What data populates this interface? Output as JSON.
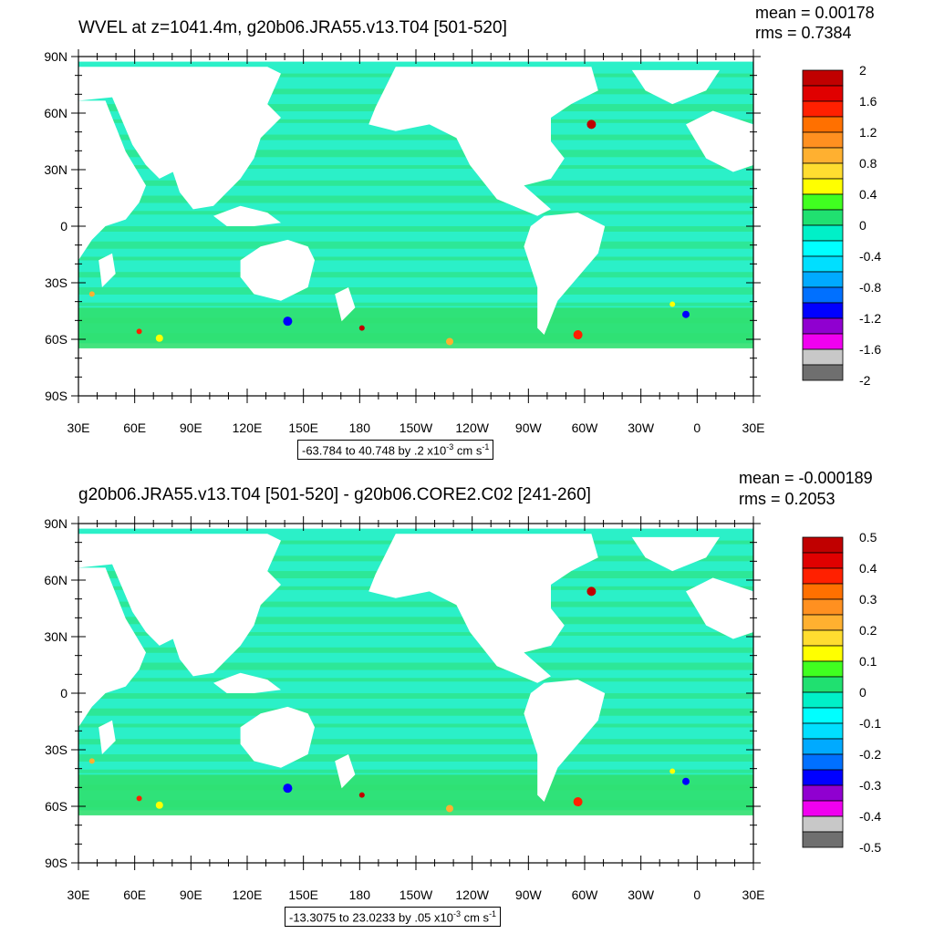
{
  "colors": {
    "palette": [
      "#6f6f6f",
      "#c8c8c8",
      "#f000f0",
      "#9000d0",
      "#0000ff",
      "#0070ff",
      "#00aaff",
      "#00dfff",
      "#00ffff",
      "#00f0c8",
      "#20e070",
      "#40ff20",
      "#ffff00",
      "#ffdd30",
      "#ffb030",
      "#ff9020",
      "#ff7000",
      "#ff2000",
      "#e00000",
      "#c00000"
    ],
    "ocean_main": "#2bf0c8",
    "ocean_secondary": "#30e070",
    "land": "#ffffff"
  },
  "panels": [
    {
      "title": "WVEL at z=1041.4m, g20b06.JRA55.v13.T04 [501-520]",
      "mean": "mean = 0.00178",
      "rms": "rms = 0.7384",
      "range_text": "-63.784 to 40.748 by .2 x10",
      "range_exp": "-3",
      "range_unit": " cm s",
      "range_unit_exp": "-1",
      "lat_labels": [
        "90N",
        "60N",
        "30N",
        "0",
        "30S",
        "60S",
        "90S"
      ],
      "lon_labels": [
        "30E",
        "60E",
        "90E",
        "120E",
        "150E",
        "180",
        "150W",
        "120W",
        "90W",
        "60W",
        "30W",
        "0",
        "30E"
      ],
      "colorbar_labels": [
        "2",
        "1.6",
        "1.2",
        "0.8",
        "0.4",
        "0",
        "-0.4",
        "-0.8",
        "-1.2",
        "-1.6",
        "-2"
      ]
    },
    {
      "title": "g20b06.JRA55.v13.T04 [501-520] - g20b06.CORE2.C02 [241-260]",
      "mean": "mean = -0.000189",
      "rms": "rms = 0.2053",
      "range_text": "-13.3075 to 23.0233 by .05 x10",
      "range_exp": "-3",
      "range_unit": " cm s",
      "range_unit_exp": "-1",
      "lat_labels": [
        "90N",
        "60N",
        "30N",
        "0",
        "30S",
        "60S",
        "90S"
      ],
      "lon_labels": [
        "30E",
        "60E",
        "90E",
        "120E",
        "150E",
        "180",
        "150W",
        "120W",
        "90W",
        "60W",
        "30W",
        "0",
        "30E"
      ],
      "colorbar_labels": [
        "0.5",
        "0.4",
        "0.3",
        "0.2",
        "0.1",
        "0",
        "-0.1",
        "-0.2",
        "-0.3",
        "-0.4",
        "-0.5"
      ]
    }
  ]
}
